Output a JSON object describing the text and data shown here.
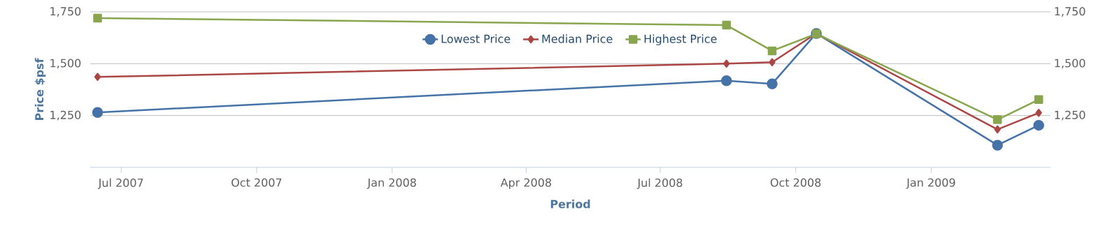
{
  "chart_data": {
    "type": "line",
    "xlabel": "Period",
    "ylabel": "Price $psf",
    "x": [
      "2007-06-15",
      "2008-08-15",
      "2008-09-15",
      "2008-10-15",
      "2009-02-15",
      "2009-03-15"
    ],
    "series": [
      {
        "name": "Lowest Price",
        "color": "#4572a7",
        "marker": "circle",
        "values": [
          1265,
          1418,
          1403,
          1646,
          1107,
          1203
        ]
      },
      {
        "name": "Median Price",
        "color": "#aa4643",
        "marker": "diamond",
        "values": [
          1436,
          1500,
          1507,
          1646,
          1183,
          1263
        ]
      },
      {
        "name": "Highest Price",
        "color": "#89a54e",
        "marker": "square",
        "values": [
          1720,
          1686,
          1562,
          1644,
          1230,
          1327
        ]
      }
    ],
    "xlim": [
      "2007-06-10",
      "2009-03-23"
    ],
    "xticks": [
      {
        "value": "2007-07-01",
        "label": "Jul 2007"
      },
      {
        "value": "2007-10-01",
        "label": "Oct 2007"
      },
      {
        "value": "2008-01-01",
        "label": "Jan 2008"
      },
      {
        "value": "2008-04-01",
        "label": "Apr 2008"
      },
      {
        "value": "2008-07-01",
        "label": "Jul 2008"
      },
      {
        "value": "2008-10-01",
        "label": "Oct 2008"
      },
      {
        "value": "2009-01-01",
        "label": "Jan 2009"
      }
    ],
    "ylim": [
      1000,
      1750
    ],
    "yticks": [
      {
        "value": 1250,
        "label": "1,250"
      },
      {
        "value": 1500,
        "label": "1,500"
      },
      {
        "value": 1750,
        "label": "1,750"
      }
    ],
    "y2lim": [
      1000,
      1750
    ],
    "y2ticks": [
      {
        "value": 1250,
        "label": "1,250"
      },
      {
        "value": 1500,
        "label": "1,500"
      },
      {
        "value": 1750,
        "label": "1,750"
      }
    ],
    "grid": "y",
    "legend": "top",
    "line_style": "solid"
  }
}
